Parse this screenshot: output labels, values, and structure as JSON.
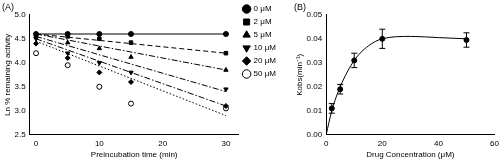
{
  "chart_data": [
    {
      "type": "line",
      "title": "(A)",
      "x_label": "Preincubation time (min)",
      "y_label": "Ln % remaining activity",
      "x": [
        0,
        5,
        10,
        15,
        30
      ],
      "fit_x": [
        0,
        30
      ],
      "xlim": [
        -1,
        32
      ],
      "xticks": [
        0,
        10,
        20,
        30
      ],
      "ylim": [
        2.5,
        5.0
      ],
      "yticks": [
        2.5,
        {
          "value": 3,
          "label": "3.0"
        },
        3.5,
        {
          "value": 4,
          "label": "4.0"
        },
        4.5,
        {
          "value": 5,
          "label": "5.0"
        }
      ],
      "grid": false,
      "legend": "right",
      "color": "#000000",
      "series": [
        {
          "name": "0 μM",
          "marker": "circle",
          "line_style": "solid",
          "values": [
            4.6,
            4.6,
            4.6,
            4.6,
            4.6
          ],
          "fit": [
            4.6,
            4.6
          ]
        },
        {
          "name": "2 μM",
          "marker": "square",
          "line_style": "dashed",
          "values": [
            4.58,
            4.55,
            4.5,
            4.42,
            4.2
          ],
          "fit": [
            4.6,
            4.2
          ]
        },
        {
          "name": "5 μM",
          "marker": "triangle",
          "line_style": "dashdot",
          "values": [
            4.55,
            4.42,
            4.3,
            4.12,
            3.85
          ],
          "fit": [
            4.6,
            3.85
          ]
        },
        {
          "name": "10 μM",
          "marker": "triangle-down",
          "line_style": "dashdot",
          "values": [
            4.5,
            4.2,
            4.0,
            3.8,
            3.45
          ],
          "fit": [
            4.55,
            3.4
          ]
        },
        {
          "name": "20 μM",
          "marker": "diamond",
          "line_style": "dashdot",
          "values": [
            4.4,
            4.1,
            3.8,
            3.6,
            3.1
          ],
          "fit": [
            4.5,
            3.1
          ]
        },
        {
          "name": "50 μM",
          "marker": "circle-open",
          "line_style": "dotted",
          "values": [
            4.2,
            3.95,
            3.5,
            3.15,
            3.05
          ],
          "fit": [
            4.45,
            2.9
          ]
        }
      ]
    },
    {
      "type": "scatter",
      "title": "(B)",
      "x_label": "Drug Concentration (μM)",
      "y_label": "Kobs(min⁻¹)",
      "x": [
        2,
        5,
        10,
        20,
        50
      ],
      "values": [
        0.011,
        0.019,
        0.031,
        0.04,
        0.0395
      ],
      "errors": [
        0.002,
        0.002,
        0.003,
        0.004,
        0.003
      ],
      "curve_x": [
        0,
        2,
        5,
        10,
        15,
        20,
        30,
        40,
        50
      ],
      "curve_values": [
        0,
        0.01,
        0.02,
        0.031,
        0.037,
        0.04,
        0.041,
        0.0405,
        0.04
      ],
      "xlim": [
        0,
        60
      ],
      "xticks": [
        0,
        20,
        40,
        60
      ],
      "ylim": [
        0,
        0.05
      ],
      "yticks": [
        {
          "value": 0,
          "label": "0.00"
        },
        0.01,
        0.02,
        0.03,
        0.04,
        0.05
      ],
      "grid": false,
      "color": "#000000",
      "marker": "circle",
      "line_style": "solid"
    }
  ]
}
